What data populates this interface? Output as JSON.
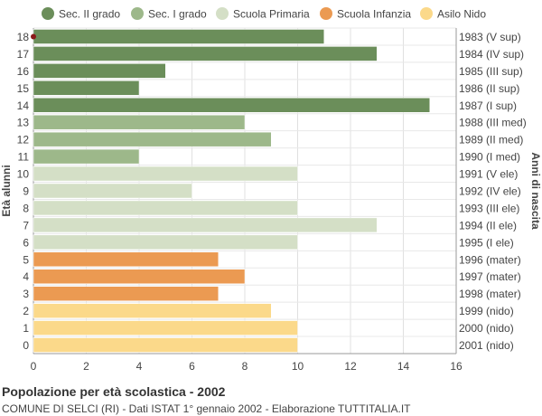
{
  "chart_data": {
    "type": "bar",
    "orientation": "horizontal",
    "title": "Popolazione per età scolastica - 2002",
    "subtitle": "COMUNE DI SELCI (RI) - Dati ISTAT 1° gennaio 2002 - Elaborazione TUTTITALIA.IT",
    "ylabel_left": "Età alunni",
    "ylabel_right": "Anni di nascita",
    "xlim": [
      0,
      16
    ],
    "xticks": [
      0,
      2,
      4,
      6,
      8,
      10,
      12,
      14,
      16
    ],
    "legend_position": "top",
    "legend": [
      {
        "name": "Sec. II grado",
        "color": "#6b8e5a"
      },
      {
        "name": "Sec. I grado",
        "color": "#9db88a"
      },
      {
        "name": "Scuola Primaria",
        "color": "#d4dfc6"
      },
      {
        "name": "Scuola Infanzia",
        "color": "#eb9a52"
      },
      {
        "name": "Asilo Nido",
        "color": "#fbd98a"
      }
    ],
    "bars": [
      {
        "age": "18",
        "birth": "1983 (V sup)",
        "value": 11,
        "group": 0
      },
      {
        "age": "17",
        "birth": "1984 (IV sup)",
        "value": 13,
        "group": 0
      },
      {
        "age": "16",
        "birth": "1985 (III sup)",
        "value": 5,
        "group": 0
      },
      {
        "age": "15",
        "birth": "1986 (II sup)",
        "value": 4,
        "group": 0
      },
      {
        "age": "14",
        "birth": "1987 (I sup)",
        "value": 15,
        "group": 0
      },
      {
        "age": "13",
        "birth": "1988 (III med)",
        "value": 8,
        "group": 1
      },
      {
        "age": "12",
        "birth": "1989 (II med)",
        "value": 9,
        "group": 1
      },
      {
        "age": "11",
        "birth": "1990 (I med)",
        "value": 4,
        "group": 1
      },
      {
        "age": "10",
        "birth": "1991 (V ele)",
        "value": 10,
        "group": 2
      },
      {
        "age": "9",
        "birth": "1992 (IV ele)",
        "value": 6,
        "group": 2
      },
      {
        "age": "8",
        "birth": "1993 (III ele)",
        "value": 10,
        "group": 2
      },
      {
        "age": "7",
        "birth": "1994 (II ele)",
        "value": 13,
        "group": 2
      },
      {
        "age": "6",
        "birth": "1995 (I ele)",
        "value": 10,
        "group": 2
      },
      {
        "age": "5",
        "birth": "1996 (mater)",
        "value": 7,
        "group": 3
      },
      {
        "age": "4",
        "birth": "1997 (mater)",
        "value": 8,
        "group": 3
      },
      {
        "age": "3",
        "birth": "1998 (mater)",
        "value": 7,
        "group": 3
      },
      {
        "age": "2",
        "birth": "1999 (nido)",
        "value": 9,
        "group": 4
      },
      {
        "age": "1",
        "birth": "2000 (nido)",
        "value": 10,
        "group": 4
      },
      {
        "age": "0",
        "birth": "2001 (nido)",
        "value": 10,
        "group": 4
      }
    ],
    "grid": true
  }
}
